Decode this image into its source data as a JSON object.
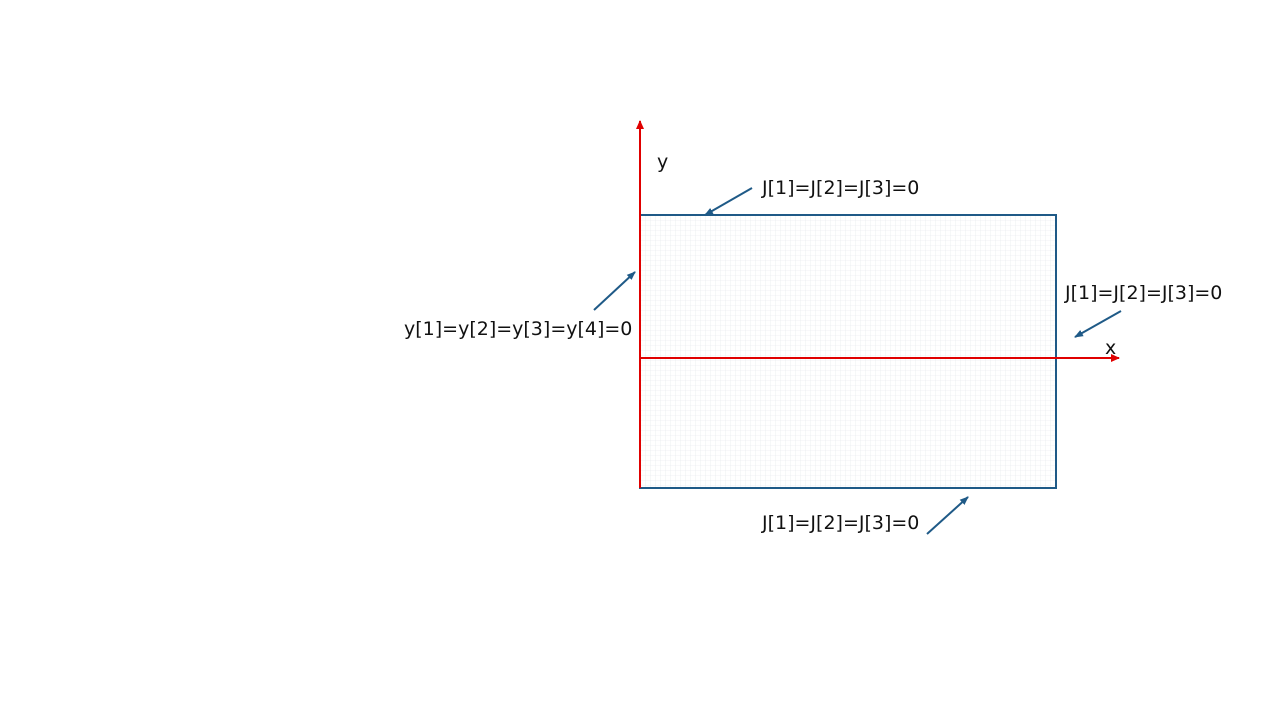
{
  "diagram": {
    "axes": {
      "y_label": "y",
      "x_label": "x",
      "color": "#e00000"
    },
    "domain": {
      "border_color": "#1f5a87",
      "mesh_color": "#e2e6ea"
    },
    "boundary_conditions": {
      "top": "J[1]=J[2]=J[3]=0",
      "right": "J[1]=J[2]=J[3]=0",
      "bottom": "J[1]=J[2]=J[3]=0",
      "left": "y[1]=y[2]=y[3]=y[4]=0"
    },
    "arrow_color": "#1f5a87"
  }
}
